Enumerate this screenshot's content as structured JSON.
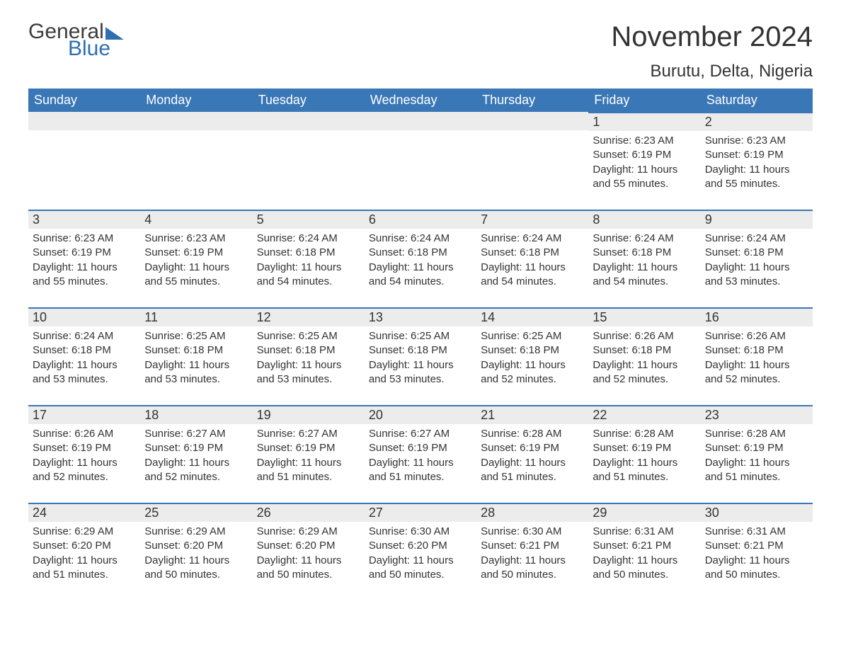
{
  "logo": {
    "word1": "General",
    "word2": "Blue"
  },
  "title": "November 2024",
  "location": "Burutu, Delta, Nigeria",
  "colors": {
    "header_bg": "#3a77b7",
    "header_text": "#ffffff",
    "rule": "#3a77b7",
    "daynum_bg": "#ececec",
    "text": "#333333",
    "logo_accent": "#2f6fb1"
  },
  "typography": {
    "title_fontsize": 40,
    "location_fontsize": 24,
    "header_fontsize": 18,
    "daynum_fontsize": 18,
    "body_fontsize": 15
  },
  "weekdays": [
    "Sunday",
    "Monday",
    "Tuesday",
    "Wednesday",
    "Thursday",
    "Friday",
    "Saturday"
  ],
  "labels": {
    "sunrise": "Sunrise",
    "sunset": "Sunset",
    "daylight": "Daylight"
  },
  "weeks": [
    [
      null,
      null,
      null,
      null,
      null,
      {
        "n": 1,
        "sunrise": "6:23 AM",
        "sunset": "6:19 PM",
        "daylight": "11 hours and 55 minutes."
      },
      {
        "n": 2,
        "sunrise": "6:23 AM",
        "sunset": "6:19 PM",
        "daylight": "11 hours and 55 minutes."
      }
    ],
    [
      {
        "n": 3,
        "sunrise": "6:23 AM",
        "sunset": "6:19 PM",
        "daylight": "11 hours and 55 minutes."
      },
      {
        "n": 4,
        "sunrise": "6:23 AM",
        "sunset": "6:19 PM",
        "daylight": "11 hours and 55 minutes."
      },
      {
        "n": 5,
        "sunrise": "6:24 AM",
        "sunset": "6:18 PM",
        "daylight": "11 hours and 54 minutes."
      },
      {
        "n": 6,
        "sunrise": "6:24 AM",
        "sunset": "6:18 PM",
        "daylight": "11 hours and 54 minutes."
      },
      {
        "n": 7,
        "sunrise": "6:24 AM",
        "sunset": "6:18 PM",
        "daylight": "11 hours and 54 minutes."
      },
      {
        "n": 8,
        "sunrise": "6:24 AM",
        "sunset": "6:18 PM",
        "daylight": "11 hours and 54 minutes."
      },
      {
        "n": 9,
        "sunrise": "6:24 AM",
        "sunset": "6:18 PM",
        "daylight": "11 hours and 53 minutes."
      }
    ],
    [
      {
        "n": 10,
        "sunrise": "6:24 AM",
        "sunset": "6:18 PM",
        "daylight": "11 hours and 53 minutes."
      },
      {
        "n": 11,
        "sunrise": "6:25 AM",
        "sunset": "6:18 PM",
        "daylight": "11 hours and 53 minutes."
      },
      {
        "n": 12,
        "sunrise": "6:25 AM",
        "sunset": "6:18 PM",
        "daylight": "11 hours and 53 minutes."
      },
      {
        "n": 13,
        "sunrise": "6:25 AM",
        "sunset": "6:18 PM",
        "daylight": "11 hours and 53 minutes."
      },
      {
        "n": 14,
        "sunrise": "6:25 AM",
        "sunset": "6:18 PM",
        "daylight": "11 hours and 52 minutes."
      },
      {
        "n": 15,
        "sunrise": "6:26 AM",
        "sunset": "6:18 PM",
        "daylight": "11 hours and 52 minutes."
      },
      {
        "n": 16,
        "sunrise": "6:26 AM",
        "sunset": "6:18 PM",
        "daylight": "11 hours and 52 minutes."
      }
    ],
    [
      {
        "n": 17,
        "sunrise": "6:26 AM",
        "sunset": "6:19 PM",
        "daylight": "11 hours and 52 minutes."
      },
      {
        "n": 18,
        "sunrise": "6:27 AM",
        "sunset": "6:19 PM",
        "daylight": "11 hours and 52 minutes."
      },
      {
        "n": 19,
        "sunrise": "6:27 AM",
        "sunset": "6:19 PM",
        "daylight": "11 hours and 51 minutes."
      },
      {
        "n": 20,
        "sunrise": "6:27 AM",
        "sunset": "6:19 PM",
        "daylight": "11 hours and 51 minutes."
      },
      {
        "n": 21,
        "sunrise": "6:28 AM",
        "sunset": "6:19 PM",
        "daylight": "11 hours and 51 minutes."
      },
      {
        "n": 22,
        "sunrise": "6:28 AM",
        "sunset": "6:19 PM",
        "daylight": "11 hours and 51 minutes."
      },
      {
        "n": 23,
        "sunrise": "6:28 AM",
        "sunset": "6:19 PM",
        "daylight": "11 hours and 51 minutes."
      }
    ],
    [
      {
        "n": 24,
        "sunrise": "6:29 AM",
        "sunset": "6:20 PM",
        "daylight": "11 hours and 51 minutes."
      },
      {
        "n": 25,
        "sunrise": "6:29 AM",
        "sunset": "6:20 PM",
        "daylight": "11 hours and 50 minutes."
      },
      {
        "n": 26,
        "sunrise": "6:29 AM",
        "sunset": "6:20 PM",
        "daylight": "11 hours and 50 minutes."
      },
      {
        "n": 27,
        "sunrise": "6:30 AM",
        "sunset": "6:20 PM",
        "daylight": "11 hours and 50 minutes."
      },
      {
        "n": 28,
        "sunrise": "6:30 AM",
        "sunset": "6:21 PM",
        "daylight": "11 hours and 50 minutes."
      },
      {
        "n": 29,
        "sunrise": "6:31 AM",
        "sunset": "6:21 PM",
        "daylight": "11 hours and 50 minutes."
      },
      {
        "n": 30,
        "sunrise": "6:31 AM",
        "sunset": "6:21 PM",
        "daylight": "11 hours and 50 minutes."
      }
    ]
  ]
}
